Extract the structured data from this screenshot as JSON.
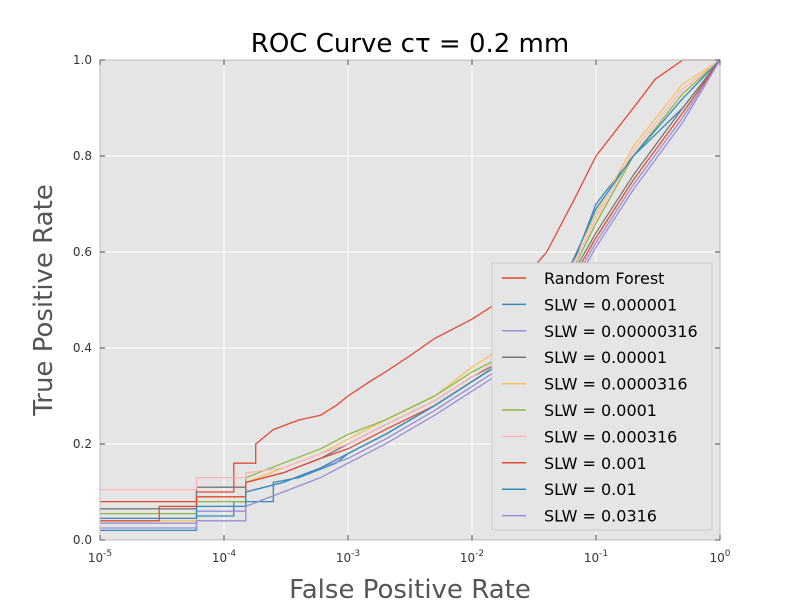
{
  "chart_data": {
    "type": "line",
    "title": "ROC Curve cτ = 0.2 mm",
    "xlabel": "False Positive Rate",
    "ylabel": "True Positive Rate",
    "x_scale": "log",
    "xlim": [
      1e-05,
      1
    ],
    "ylim": [
      0,
      1
    ],
    "grid": true,
    "legend_position": "lower-right",
    "x_ticks": [
      {
        "base": "10",
        "exp": "-5"
      },
      {
        "base": "10",
        "exp": "-4"
      },
      {
        "base": "10",
        "exp": "-3"
      },
      {
        "base": "10",
        "exp": "-2"
      },
      {
        "base": "10",
        "exp": "-1"
      },
      {
        "base": "10",
        "exp": "0"
      }
    ],
    "y_ticks": [
      "0.0",
      "0.2",
      "0.4",
      "0.6",
      "0.8",
      "1.0"
    ],
    "series": [
      {
        "name": "Random Forest",
        "color": "#e24a33",
        "points": [
          [
            1e-05,
            0.08
          ],
          [
            6e-05,
            0.08
          ],
          [
            6e-05,
            0.1
          ],
          [
            0.00012,
            0.1
          ],
          [
            0.00012,
            0.16
          ],
          [
            0.00018,
            0.16
          ],
          [
            0.00018,
            0.2
          ],
          [
            0.00025,
            0.23
          ],
          [
            0.0004,
            0.25
          ],
          [
            0.0006,
            0.26
          ],
          [
            0.0008,
            0.28
          ],
          [
            0.001,
            0.3
          ],
          [
            0.0015,
            0.33
          ],
          [
            0.002,
            0.35
          ],
          [
            0.003,
            0.38
          ],
          [
            0.005,
            0.42
          ],
          [
            0.01,
            0.46
          ],
          [
            0.02,
            0.51
          ],
          [
            0.04,
            0.6
          ],
          [
            0.07,
            0.72
          ],
          [
            0.1,
            0.8
          ],
          [
            0.2,
            0.9
          ],
          [
            0.3,
            0.96
          ],
          [
            0.5,
            1.0
          ],
          [
            1,
            1.0
          ]
        ]
      },
      {
        "name": "SLW = 0.000001",
        "color": "#348abd",
        "points": [
          [
            1e-05,
            0.02
          ],
          [
            6e-05,
            0.02
          ],
          [
            6e-05,
            0.05
          ],
          [
            0.00012,
            0.05
          ],
          [
            0.00012,
            0.08
          ],
          [
            0.00025,
            0.08
          ],
          [
            0.00025,
            0.12
          ],
          [
            0.0004,
            0.13
          ],
          [
            0.0008,
            0.16
          ],
          [
            0.001,
            0.18
          ],
          [
            0.002,
            0.22
          ],
          [
            0.005,
            0.28
          ],
          [
            0.01,
            0.33
          ],
          [
            0.02,
            0.38
          ],
          [
            0.04,
            0.45
          ],
          [
            0.06,
            0.55
          ],
          [
            0.1,
            0.7
          ],
          [
            0.2,
            0.8
          ],
          [
            0.5,
            0.9
          ],
          [
            1,
            1.0
          ]
        ]
      },
      {
        "name": "SLW = 0.00000316",
        "color": "#988ed5",
        "points": [
          [
            1e-05,
            0.025
          ],
          [
            6e-05,
            0.025
          ],
          [
            6e-05,
            0.06
          ],
          [
            0.00015,
            0.06
          ],
          [
            0.00015,
            0.1
          ],
          [
            0.0003,
            0.12
          ],
          [
            0.0006,
            0.15
          ],
          [
            0.001,
            0.17
          ],
          [
            0.002,
            0.21
          ],
          [
            0.005,
            0.27
          ],
          [
            0.01,
            0.32
          ],
          [
            0.02,
            0.37
          ],
          [
            0.04,
            0.44
          ],
          [
            0.07,
            0.55
          ],
          [
            0.1,
            0.62
          ],
          [
            0.2,
            0.74
          ],
          [
            0.5,
            0.88
          ],
          [
            1,
            1.0
          ]
        ]
      },
      {
        "name": "SLW = 0.00001",
        "color": "#777777",
        "points": [
          [
            1e-05,
            0.065
          ],
          [
            6e-05,
            0.065
          ],
          [
            6e-05,
            0.11
          ],
          [
            0.00015,
            0.11
          ],
          [
            0.00015,
            0.12
          ],
          [
            0.0003,
            0.14
          ],
          [
            0.0006,
            0.17
          ],
          [
            0.001,
            0.2
          ],
          [
            0.002,
            0.24
          ],
          [
            0.005,
            0.29
          ],
          [
            0.01,
            0.34
          ],
          [
            0.02,
            0.38
          ],
          [
            0.04,
            0.45
          ],
          [
            0.07,
            0.57
          ],
          [
            0.1,
            0.64
          ],
          [
            0.2,
            0.76
          ],
          [
            0.5,
            0.9
          ],
          [
            1,
            1.0
          ]
        ]
      },
      {
        "name": "SLW = 0.0000316",
        "color": "#fbc15e",
        "points": [
          [
            1e-05,
            0.04
          ],
          [
            6e-05,
            0.04
          ],
          [
            6e-05,
            0.09
          ],
          [
            0.00015,
            0.09
          ],
          [
            0.00015,
            0.12
          ],
          [
            0.0003,
            0.15
          ],
          [
            0.0006,
            0.18
          ],
          [
            0.001,
            0.21
          ],
          [
            0.002,
            0.25
          ],
          [
            0.005,
            0.3
          ],
          [
            0.01,
            0.36
          ],
          [
            0.02,
            0.41
          ],
          [
            0.04,
            0.48
          ],
          [
            0.07,
            0.6
          ],
          [
            0.1,
            0.68
          ],
          [
            0.2,
            0.82
          ],
          [
            0.5,
            0.95
          ],
          [
            1,
            1.0
          ]
        ]
      },
      {
        "name": "SLW = 0.0001",
        "color": "#8eba42",
        "points": [
          [
            1e-05,
            0.055
          ],
          [
            6e-05,
            0.055
          ],
          [
            6e-05,
            0.08
          ],
          [
            0.00015,
            0.08
          ],
          [
            0.00015,
            0.13
          ],
          [
            0.0003,
            0.16
          ],
          [
            0.0006,
            0.19
          ],
          [
            0.001,
            0.22
          ],
          [
            0.002,
            0.25
          ],
          [
            0.005,
            0.3
          ],
          [
            0.01,
            0.35
          ],
          [
            0.02,
            0.39
          ],
          [
            0.04,
            0.46
          ],
          [
            0.07,
            0.58
          ],
          [
            0.1,
            0.66
          ],
          [
            0.2,
            0.8
          ],
          [
            0.5,
            0.93
          ],
          [
            1,
            1.0
          ]
        ]
      },
      {
        "name": "SLW = 0.000316",
        "color": "#ffb5b8",
        "points": [
          [
            1e-05,
            0.105
          ],
          [
            6e-05,
            0.105
          ],
          [
            6e-05,
            0.13
          ],
          [
            0.00015,
            0.13
          ],
          [
            0.00015,
            0.14
          ],
          [
            0.0003,
            0.15
          ],
          [
            0.0006,
            0.18
          ],
          [
            0.001,
            0.2
          ],
          [
            0.002,
            0.24
          ],
          [
            0.005,
            0.29
          ],
          [
            0.01,
            0.34
          ],
          [
            0.02,
            0.39
          ],
          [
            0.04,
            0.47
          ],
          [
            0.07,
            0.59
          ],
          [
            0.1,
            0.67
          ],
          [
            0.2,
            0.81
          ],
          [
            0.5,
            0.94
          ],
          [
            1,
            1.0
          ]
        ]
      },
      {
        "name": "SLW = 0.001",
        "color": "#e24a33",
        "points": [
          [
            1e-05,
            0.04
          ],
          [
            3e-05,
            0.04
          ],
          [
            3e-05,
            0.07
          ],
          [
            6e-05,
            0.07
          ],
          [
            6e-05,
            0.09
          ],
          [
            0.00015,
            0.09
          ],
          [
            0.00015,
            0.12
          ],
          [
            0.0003,
            0.14
          ],
          [
            0.0006,
            0.17
          ],
          [
            0.001,
            0.19
          ],
          [
            0.002,
            0.23
          ],
          [
            0.005,
            0.28
          ],
          [
            0.01,
            0.33
          ],
          [
            0.02,
            0.38
          ],
          [
            0.04,
            0.45
          ],
          [
            0.07,
            0.56
          ],
          [
            0.1,
            0.63
          ],
          [
            0.2,
            0.75
          ],
          [
            0.5,
            0.89
          ],
          [
            1,
            1.0
          ]
        ]
      },
      {
        "name": "SLW = 0.01",
        "color": "#348abd",
        "points": [
          [
            1e-05,
            0.045
          ],
          [
            6e-05,
            0.045
          ],
          [
            6e-05,
            0.07
          ],
          [
            0.00015,
            0.07
          ],
          [
            0.00015,
            0.1
          ],
          [
            0.0003,
            0.12
          ],
          [
            0.0006,
            0.15
          ],
          [
            0.001,
            0.18
          ],
          [
            0.002,
            0.22
          ],
          [
            0.005,
            0.28
          ],
          [
            0.01,
            0.33
          ],
          [
            0.02,
            0.38
          ],
          [
            0.04,
            0.46
          ],
          [
            0.07,
            0.6
          ],
          [
            0.1,
            0.69
          ],
          [
            0.2,
            0.8
          ],
          [
            0.5,
            0.92
          ],
          [
            1,
            1.0
          ]
        ]
      },
      {
        "name": "SLW = 0.0316",
        "color": "#988ed5",
        "points": [
          [
            1e-05,
            0.035
          ],
          [
            6e-05,
            0.035
          ],
          [
            6e-05,
            0.04
          ],
          [
            0.00015,
            0.04
          ],
          [
            0.00015,
            0.07
          ],
          [
            0.0003,
            0.1
          ],
          [
            0.0006,
            0.13
          ],
          [
            0.001,
            0.16
          ],
          [
            0.002,
            0.2
          ],
          [
            0.005,
            0.26
          ],
          [
            0.01,
            0.31
          ],
          [
            0.02,
            0.36
          ],
          [
            0.04,
            0.43
          ],
          [
            0.07,
            0.54
          ],
          [
            0.1,
            0.61
          ],
          [
            0.2,
            0.73
          ],
          [
            0.5,
            0.87
          ],
          [
            1,
            1.0
          ]
        ]
      }
    ]
  }
}
